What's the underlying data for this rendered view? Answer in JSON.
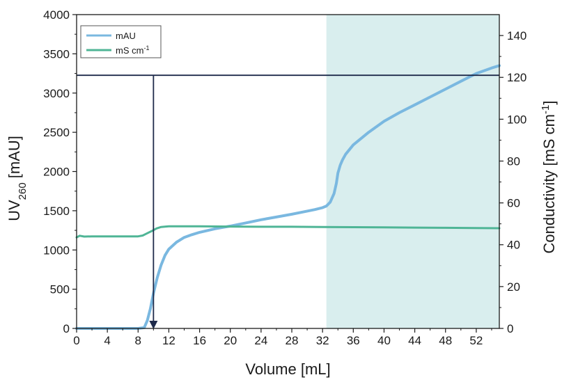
{
  "chart_data": {
    "type": "line",
    "xlabel": "Volume [mL]",
    "xlim": [
      0,
      55
    ],
    "x_ticks": [
      0,
      4,
      8,
      12,
      16,
      20,
      24,
      28,
      32,
      36,
      40,
      44,
      48,
      52
    ],
    "y_left": {
      "label_main": "UV",
      "label_sub": "260",
      "label_unit": " [mAU]",
      "lim": [
        0,
        4000
      ],
      "ticks": [
        0,
        500,
        1000,
        1500,
        2000,
        2500,
        3000,
        3500,
        4000
      ]
    },
    "y_right": {
      "label_main": "Conductivity [mS cm",
      "label_sup": "-1",
      "label_end": "]",
      "lim": [
        0,
        150
      ],
      "ticks": [
        0,
        20,
        40,
        60,
        80,
        100,
        120,
        140
      ]
    },
    "legend": {
      "placement": "top-left",
      "entries": [
        {
          "name": "mAU",
          "color": "#7ab8e0"
        },
        {
          "name_main": "mS cm",
          "name_sup": "-1",
          "color": "#4fb596"
        }
      ]
    },
    "shaded_region": {
      "x_start": 32.5,
      "x_end": 55,
      "color": "#d9eeee"
    },
    "horizontal_line": {
      "y_right_value": 121,
      "color": "#1e2a4a"
    },
    "arrow": {
      "x": 10,
      "y_from_right": 121,
      "y_to_left": 0,
      "color": "#1e2a4a"
    },
    "series": [
      {
        "name": "mAU",
        "axis": "left",
        "color": "#7ab8e0",
        "x": [
          0,
          2,
          4,
          6,
          8,
          8.8,
          9.2,
          9.6,
          10,
          10.5,
          11,
          11.5,
          12,
          13,
          14,
          15,
          16,
          18,
          20,
          22,
          24,
          26,
          28,
          30,
          31,
          32,
          32.5,
          33,
          33.5,
          33.8,
          34,
          34.3,
          34.6,
          35,
          36,
          38,
          40,
          42,
          44,
          46,
          48,
          50,
          52,
          54,
          55
        ],
        "y": [
          0,
          0,
          0,
          0,
          0,
          10,
          100,
          250,
          450,
          650,
          810,
          930,
          1010,
          1100,
          1160,
          1195,
          1225,
          1270,
          1305,
          1345,
          1385,
          1420,
          1455,
          1495,
          1515,
          1540,
          1560,
          1610,
          1720,
          1850,
          1980,
          2080,
          2150,
          2220,
          2340,
          2500,
          2640,
          2750,
          2850,
          2950,
          3050,
          3150,
          3250,
          3320,
          3350
        ]
      },
      {
        "name": "mS cm-1",
        "axis": "right",
        "color": "#4fb596",
        "x": [
          0,
          0.4,
          1,
          2,
          4,
          6,
          8,
          8.6,
          9.2,
          9.8,
          10.4,
          11,
          11.6,
          12,
          14,
          16,
          20,
          24,
          28,
          32,
          36,
          40,
          44,
          48,
          52,
          55
        ],
        "y": [
          43.5,
          44.3,
          43.9,
          44.0,
          44.0,
          44.0,
          44.0,
          44.4,
          45.5,
          46.6,
          47.8,
          48.5,
          48.7,
          48.8,
          48.8,
          48.8,
          48.7,
          48.6,
          48.6,
          48.5,
          48.4,
          48.3,
          48.2,
          48.1,
          48.0,
          47.9
        ]
      }
    ]
  }
}
